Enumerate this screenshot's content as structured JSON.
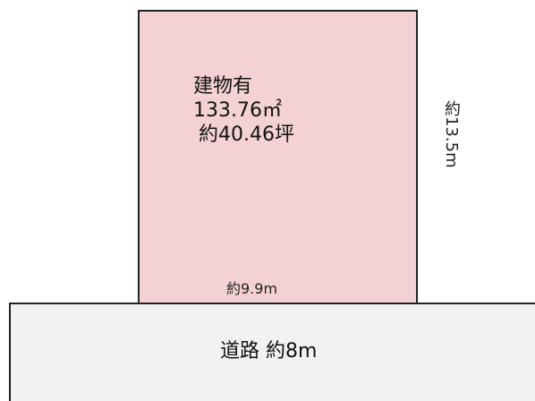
{
  "plot": {
    "status": "建物有",
    "area_sqm": "133.76㎡",
    "area_tsubo": "約40.46坪",
    "fill_color": "#f4d2d3"
  },
  "dimensions": {
    "frontage": "約9.9m",
    "depth": "約13.5m"
  },
  "road": {
    "label": "道路 約8m",
    "fill_color": "#f2f2f2"
  }
}
